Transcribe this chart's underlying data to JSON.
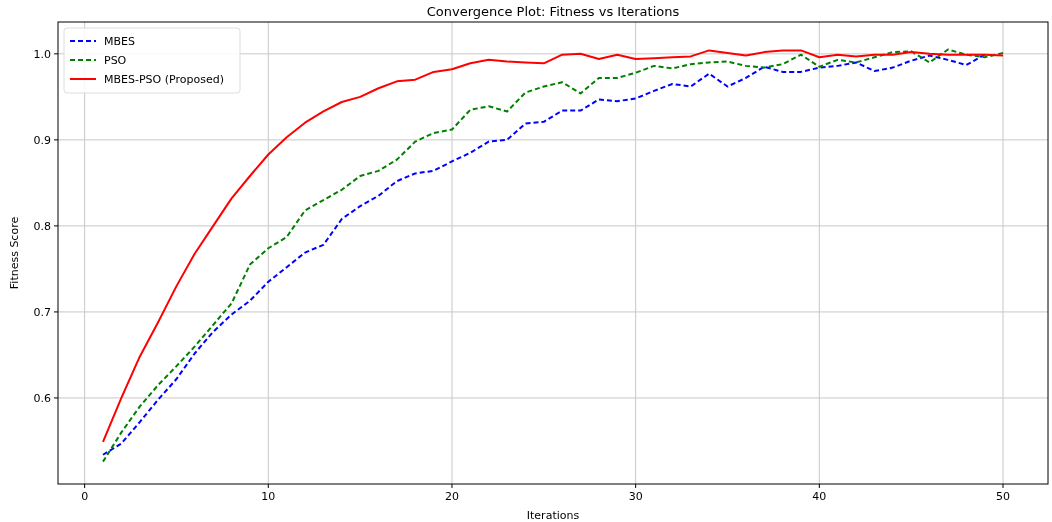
{
  "chart_data": {
    "type": "line",
    "title": "Convergence Plot: Fitness vs Iterations",
    "xlabel": "Iterations",
    "ylabel": "Fitness Score",
    "x": [
      1,
      2,
      3,
      4,
      5,
      6,
      7,
      8,
      9,
      10,
      11,
      12,
      13,
      14,
      15,
      16,
      17,
      18,
      19,
      20,
      21,
      22,
      23,
      24,
      25,
      26,
      27,
      28,
      29,
      30,
      31,
      32,
      33,
      34,
      35,
      36,
      37,
      38,
      39,
      40,
      41,
      42,
      43,
      44,
      45,
      46,
      47,
      48,
      49,
      50
    ],
    "series": [
      {
        "name": "MBES",
        "color": "#0000ff",
        "line_style": "dashed",
        "values": [
          0.534,
          0.547,
          0.572,
          0.598,
          0.622,
          0.652,
          0.677,
          0.697,
          0.713,
          0.735,
          0.752,
          0.769,
          0.778,
          0.808,
          0.823,
          0.835,
          0.852,
          0.861,
          0.864,
          0.875,
          0.885,
          0.898,
          0.9,
          0.919,
          0.921,
          0.934,
          0.934,
          0.947,
          0.945,
          0.948,
          0.957,
          0.965,
          0.962,
          0.977,
          0.962,
          0.972,
          0.985,
          0.979,
          0.979,
          0.984,
          0.986,
          0.99,
          0.98,
          0.984,
          0.992,
          0.998,
          0.993,
          0.987,
          0.999,
          null
        ]
      },
      {
        "name": "PSO",
        "color": "#008000",
        "line_style": "dashed",
        "values": [
          0.526,
          0.56,
          0.59,
          0.615,
          0.637,
          0.66,
          0.685,
          0.71,
          0.755,
          0.774,
          0.787,
          0.818,
          0.83,
          0.842,
          0.858,
          0.864,
          0.877,
          0.898,
          0.908,
          0.912,
          0.935,
          0.939,
          0.933,
          0.955,
          0.962,
          0.967,
          0.954,
          0.972,
          0.972,
          0.978,
          0.986,
          0.983,
          0.988,
          0.99,
          0.991,
          0.986,
          0.984,
          0.988,
          0.999,
          0.985,
          0.993,
          0.99,
          0.996,
          1.002,
          1.003,
          0.99,
          1.005,
          0.999,
          0.996,
          1.001
        ]
      },
      {
        "name": "MBES-PSO (Proposed)",
        "color": "#ff0000",
        "line_style": "solid",
        "values": [
          0.549,
          0.6,
          0.648,
          0.688,
          0.73,
          0.768,
          0.8,
          0.832,
          0.858,
          0.883,
          0.903,
          0.92,
          0.933,
          0.944,
          0.95,
          0.96,
          0.968,
          0.97,
          0.979,
          0.982,
          0.989,
          0.993,
          0.991,
          0.99,
          0.989,
          0.999,
          1.0,
          0.994,
          0.999,
          0.994,
          0.995,
          0.996,
          0.997,
          1.004,
          1.001,
          0.998,
          1.002,
          1.004,
          1.004,
          0.996,
          0.999,
          0.997,
          0.999,
          0.999,
          1.002,
          1.0,
          0.999,
          0.999,
          0.999,
          0.998
        ]
      }
    ],
    "xlim": [
      -1.45,
      52.45
    ],
    "xticks": [
      0,
      10,
      20,
      30,
      40,
      50
    ],
    "ylim": [
      0.5,
      1.037
    ],
    "yticks": [
      0.6,
      0.7,
      0.8,
      0.9,
      {
        "value": 1,
        "label": "1.0"
      }
    ],
    "grid": true,
    "legend": "top left"
  }
}
